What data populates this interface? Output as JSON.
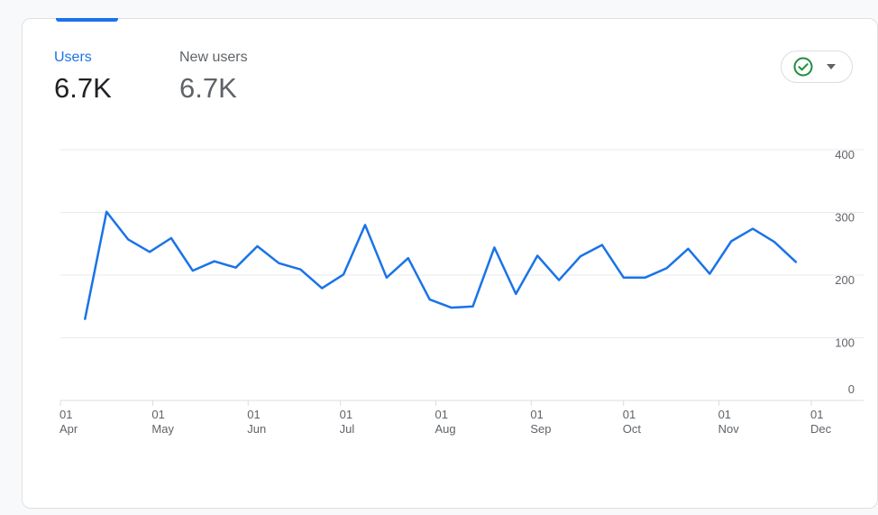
{
  "metrics": [
    {
      "label": "Users",
      "value": "6.7K",
      "active": true
    },
    {
      "label": "New users",
      "value": "6.7K",
      "active": false
    }
  ],
  "compare_button": {
    "check_icon": "check-circle-icon",
    "caret_icon": "caret-down-icon"
  },
  "colors": {
    "accent": "#1a73e8",
    "check": "#1e8e3e",
    "grid": "#e8eaed",
    "axis_text": "#5f6368"
  },
  "chart_data": {
    "type": "line",
    "x_ticks": [
      {
        "day": "01",
        "month": "Apr",
        "date": "2023-04-01"
      },
      {
        "day": "01",
        "month": "May",
        "date": "2023-05-01"
      },
      {
        "day": "01",
        "month": "Jun",
        "date": "2023-06-01"
      },
      {
        "day": "01",
        "month": "Jul",
        "date": "2023-07-01"
      },
      {
        "day": "01",
        "month": "Aug",
        "date": "2023-08-01"
      },
      {
        "day": "01",
        "month": "Sep",
        "date": "2023-09-01"
      },
      {
        "day": "01",
        "month": "Oct",
        "date": "2023-10-01"
      },
      {
        "day": "01",
        "month": "Nov",
        "date": "2023-11-01"
      },
      {
        "day": "01",
        "month": "Dec",
        "date": "2023-12-01"
      }
    ],
    "y_ticks": [
      0,
      100,
      200,
      300,
      400
    ],
    "ylim": [
      0,
      400
    ],
    "xlim": [
      "2023-04-01",
      "2023-12-01"
    ],
    "grid": true,
    "series": [
      {
        "color": "#1a73e8",
        "points": [
          {
            "x": "2023-04-09",
            "y": 130
          },
          {
            "x": "2023-04-16",
            "y": 301
          },
          {
            "x": "2023-04-23",
            "y": 257
          },
          {
            "x": "2023-04-30",
            "y": 237
          },
          {
            "x": "2023-05-07",
            "y": 259
          },
          {
            "x": "2023-05-14",
            "y": 207
          },
          {
            "x": "2023-05-21",
            "y": 222
          },
          {
            "x": "2023-05-28",
            "y": 212
          },
          {
            "x": "2023-06-04",
            "y": 246
          },
          {
            "x": "2023-06-11",
            "y": 219
          },
          {
            "x": "2023-06-18",
            "y": 209
          },
          {
            "x": "2023-06-25",
            "y": 179
          },
          {
            "x": "2023-07-02",
            "y": 201
          },
          {
            "x": "2023-07-09",
            "y": 280
          },
          {
            "x": "2023-07-16",
            "y": 196
          },
          {
            "x": "2023-07-23",
            "y": 227
          },
          {
            "x": "2023-07-30",
            "y": 161
          },
          {
            "x": "2023-08-06",
            "y": 148
          },
          {
            "x": "2023-08-13",
            "y": 150
          },
          {
            "x": "2023-08-20",
            "y": 244
          },
          {
            "x": "2023-08-27",
            "y": 170
          },
          {
            "x": "2023-09-03",
            "y": 231
          },
          {
            "x": "2023-09-10",
            "y": 192
          },
          {
            "x": "2023-09-17",
            "y": 230
          },
          {
            "x": "2023-09-24",
            "y": 248
          },
          {
            "x": "2023-10-01",
            "y": 196
          },
          {
            "x": "2023-10-08",
            "y": 196
          },
          {
            "x": "2023-10-15",
            "y": 211
          },
          {
            "x": "2023-10-22",
            "y": 242
          },
          {
            "x": "2023-10-29",
            "y": 202
          },
          {
            "x": "2023-11-05",
            "y": 254
          },
          {
            "x": "2023-11-12",
            "y": 274
          },
          {
            "x": "2023-11-19",
            "y": 253
          },
          {
            "x": "2023-11-26",
            "y": 221
          }
        ]
      }
    ]
  }
}
